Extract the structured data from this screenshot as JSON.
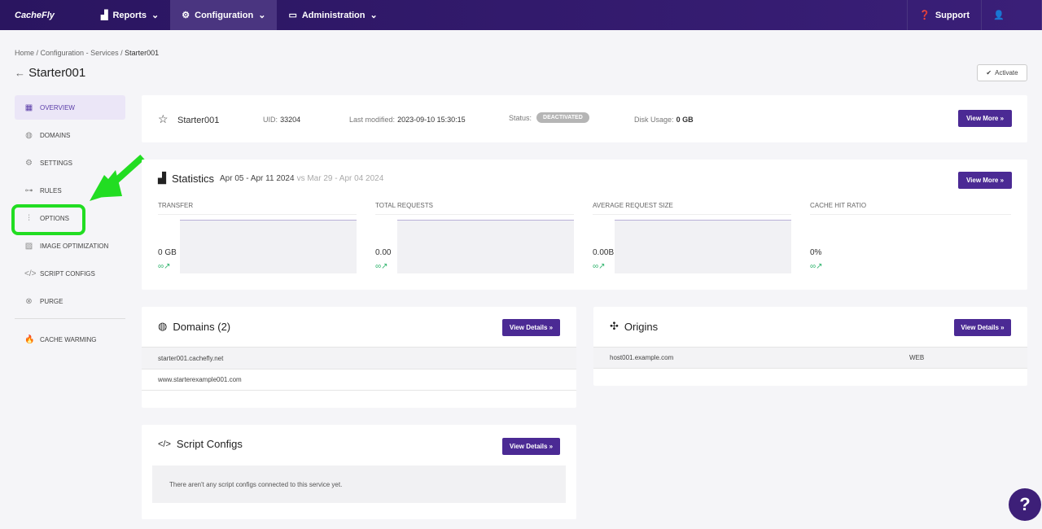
{
  "nav": {
    "logo": "CacheFly",
    "reports": "Reports",
    "configuration": "Configuration",
    "administration": "Administration",
    "support": "Support"
  },
  "breadcrumb": {
    "home": "Home",
    "services": "Configuration - Services",
    "current": "Starter001"
  },
  "page_title": "Starter001",
  "activate_label": "Activate",
  "sidebar": {
    "items": [
      {
        "label": "OVERVIEW",
        "icon": "grid-icon"
      },
      {
        "label": "DOMAINS",
        "icon": "globe-icon"
      },
      {
        "label": "SETTINGS",
        "icon": "gear-icon"
      },
      {
        "label": "RULES",
        "icon": "rules-icon"
      },
      {
        "label": "OPTIONS",
        "icon": "sliders-icon"
      },
      {
        "label": "IMAGE OPTIMIZATION",
        "icon": "image-icon"
      },
      {
        "label": "SCRIPT CONFIGS",
        "icon": "code-icon"
      },
      {
        "label": "PURGE",
        "icon": "purge-icon"
      }
    ],
    "cache_warming": "CACHE WARMING"
  },
  "summary": {
    "name": "Starter001",
    "uid_label": "UID:",
    "uid": "33204",
    "modified_label": "Last modified:",
    "modified": "2023-09-10 15:30:15",
    "status_label": "Status:",
    "status": "DEACTIVATED",
    "disk_label": "Disk Usage:",
    "disk": "0 GB",
    "view_more": "View More »"
  },
  "statistics": {
    "title": "Statistics",
    "range": "Apr 05 - Apr 11 2024",
    "compare": "vs Mar 29 - Apr 04 2024",
    "view_more": "View More »",
    "metrics": [
      {
        "label": "TRANSFER",
        "value": "0 GB",
        "trend": "∞↗"
      },
      {
        "label": "TOTAL REQUESTS",
        "value": "0.00",
        "trend": "∞↗"
      },
      {
        "label": "AVERAGE REQUEST SIZE",
        "value": "0.00B",
        "trend": "∞↗"
      },
      {
        "label": "CACHE HIT RATIO",
        "value": "0%",
        "trend": "∞↗"
      }
    ]
  },
  "domains": {
    "title": "Domains (2)",
    "view_details": "View Details »",
    "rows": [
      "starter001.cachefly.net",
      "www.starterexample001.com"
    ]
  },
  "origins": {
    "title": "Origins",
    "view_details": "View Details »",
    "rows": [
      {
        "host": "host001.example.com",
        "type": "WEB"
      }
    ]
  },
  "script_configs": {
    "title": "Script Configs",
    "view_details": "View Details »",
    "empty": "There aren't any script configs connected to this service yet."
  },
  "colors": {
    "accent": "#4b2a94",
    "nav": "#2a1560",
    "annotation": "#22dd22"
  }
}
